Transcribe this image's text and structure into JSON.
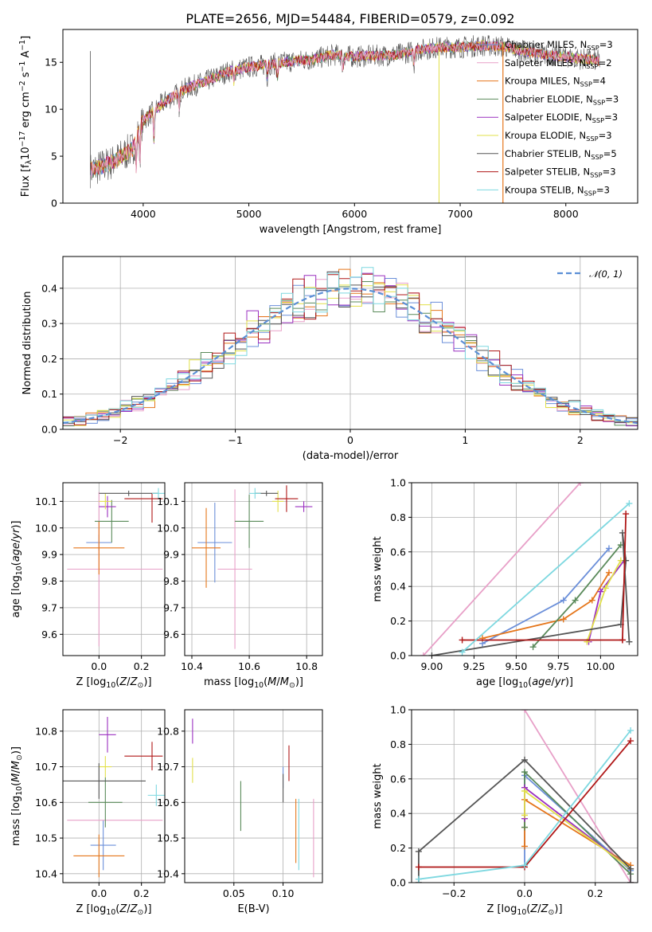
{
  "title": "PLATE=2656, MJD=54484, FIBERID=0579, z=0.092",
  "series_colors": [
    "#6b8fd9",
    "#e8a0c8",
    "#e5761b",
    "#5a8a5a",
    "#9b30c0",
    "#e2e04a",
    "#555555",
    "#b01818",
    "#7ed8e0"
  ],
  "legend": [
    "Chabrier MILES, N<sub>SSP</sub>=3",
    "Salpeter MILES, N<sub>SSP</sub>=2",
    "Kroupa MILES, N<sub>SSP</sub>=4",
    "Chabrier ELODIE, N<sub>SSP</sub>=3",
    "Salpeter ELODIE, N<sub>SSP</sub>=3",
    "Kroupa ELODIE, N<sub>SSP</sub>=3",
    "Chabrier STELIB, N<sub>SSP</sub>=5",
    "Salpeter STELIB, N<sub>SSP</sub>=3",
    "Kroupa STELIB, N<sub>SSP</sub>=3"
  ],
  "chart_data": [
    {
      "id": "spectrum",
      "type": "line",
      "xlabel": "wavelength [Angstrom, rest frame]",
      "ylabel": "Flux [f<sub>λ</sub>10<sup>−17</sup> erg cm<sup>−2</sup> s<sup>−1</sup> A<sup>−1</sup>]",
      "xlim": [
        3240,
        8680
      ],
      "ylim": [
        0,
        18.5
      ],
      "xticks": [
        4000,
        5000,
        6000,
        7000,
        8000
      ],
      "yticks": [
        0,
        5,
        10,
        15
      ],
      "x": [
        3500,
        3700,
        3900,
        4000,
        4200,
        4400,
        4600,
        4800,
        5000,
        5200,
        5400,
        5600,
        5800,
        6000,
        6200,
        6400,
        6600,
        6800,
        7000,
        7200,
        7400,
        7600,
        7800,
        8000,
        8200,
        8300
      ],
      "y": [
        3.5,
        4.3,
        5.8,
        8.8,
        10.8,
        12.2,
        13.0,
        14.0,
        14.5,
        14.8,
        15.1,
        15.3,
        15.8,
        15.6,
        15.7,
        15.8,
        16.3,
        16.6,
        16.6,
        16.8,
        16.7,
        16.2,
        15.8,
        15.6,
        15.3,
        15.2
      ]
    },
    {
      "id": "residuals",
      "type": "histogram",
      "xlabel": "(data-model)/error",
      "ylabel": "Normed distribution",
      "xlim": [
        -2.5,
        2.5
      ],
      "ylim": [
        0,
        0.49
      ],
      "xticks": [
        -2,
        -1,
        0,
        1,
        2
      ],
      "yticks": [
        0.0,
        0.1,
        0.2,
        0.3,
        0.4
      ],
      "legend": "𝒩(0, 1)",
      "bin_width": 0.1
    },
    {
      "id": "age_vs_Z",
      "type": "errorbar",
      "xlabel": "Z [log<sub>10</sub>(<i>Z</i>/<i>Z</i><sub>⊙</sub>)]",
      "ylabel": "age  [log<sub>10</sub>(<i>age</i>/<i>yr</i>)]",
      "xlim": [
        -0.17,
        0.31
      ],
      "ylim": [
        9.52,
        10.17
      ],
      "xticks": [
        0.0,
        0.2
      ],
      "yticks": [
        9.6,
        9.7,
        9.8,
        9.9,
        10.0,
        10.1
      ],
      "points": [
        {
          "series": 0,
          "x": 0.0,
          "y": 9.945,
          "xerr": [
            0.06,
            0.06
          ],
          "yerr": [
            0.03,
            0.03
          ]
        },
        {
          "series": 1,
          "x": 0.0,
          "y": 9.845,
          "xerr": [
            0.15,
            0.3
          ],
          "yerr": [
            0.29,
            0.29
          ]
        },
        {
          "series": 2,
          "x": 0.0,
          "y": 9.925,
          "xerr": [
            0.12,
            0.12
          ],
          "yerr": [
            0.1,
            0.1
          ]
        },
        {
          "series": 3,
          "x": 0.06,
          "y": 10.025,
          "xerr": [
            0.08,
            0.08
          ],
          "yerr": [
            0.08,
            0.08
          ]
        },
        {
          "series": 4,
          "x": 0.04,
          "y": 10.08,
          "xerr": [
            0.04,
            0.04
          ],
          "yerr": [
            0.04,
            0.04
          ]
        },
        {
          "series": 5,
          "x": 0.03,
          "y": 10.1,
          "xerr": [
            0.03,
            0.03
          ],
          "yerr": [
            0.03,
            0.03
          ]
        },
        {
          "series": 6,
          "x": 0.14,
          "y": 10.13,
          "xerr": [
            0.14,
            0.14
          ],
          "yerr": [
            0.01,
            0.01
          ]
        },
        {
          "series": 7,
          "x": 0.25,
          "y": 10.11,
          "xerr": [
            0.13,
            0.05
          ],
          "yerr": [
            0.09,
            0.02
          ]
        },
        {
          "series": 8,
          "x": 0.28,
          "y": 10.13,
          "xerr": [
            0.03,
            0.03
          ],
          "yerr": [
            0.02,
            0.02
          ]
        }
      ]
    },
    {
      "id": "age_vs_mass",
      "type": "errorbar",
      "xlabel": "mass [log<sub>10</sub>(<i>M</i>/<i>M</i><sub>⊙</sub>)]",
      "ylabel": "",
      "xlim": [
        10.375,
        10.855
      ],
      "ylim": [
        9.52,
        10.17
      ],
      "xticks": [
        10.4,
        10.6,
        10.8
      ],
      "yticks": [
        9.6,
        9.7,
        9.8,
        9.9,
        10.0,
        10.1
      ],
      "points": [
        {
          "series": 0,
          "x": 10.48,
          "y": 9.945,
          "xerr": [
            0.06,
            0.06
          ],
          "yerr": [
            0.15,
            0.15
          ]
        },
        {
          "series": 1,
          "x": 10.55,
          "y": 9.845,
          "xerr": [
            0.06,
            0.06
          ],
          "yerr": [
            0.3,
            0.3
          ]
        },
        {
          "series": 2,
          "x": 10.45,
          "y": 9.925,
          "xerr": [
            0.05,
            0.05
          ],
          "yerr": [
            0.15,
            0.15
          ]
        },
        {
          "series": 3,
          "x": 10.6,
          "y": 10.025,
          "xerr": [
            0.05,
            0.05
          ],
          "yerr": [
            0.1,
            0.1
          ]
        },
        {
          "series": 4,
          "x": 10.79,
          "y": 10.08,
          "xerr": [
            0.03,
            0.03
          ],
          "yerr": [
            0.02,
            0.02
          ]
        },
        {
          "series": 5,
          "x": 10.7,
          "y": 10.1,
          "xerr": [
            0.02,
            0.02
          ],
          "yerr": [
            0.04,
            0.04
          ]
        },
        {
          "series": 6,
          "x": 10.66,
          "y": 10.13,
          "xerr": [
            0.04,
            0.04
          ],
          "yerr": [
            0.01,
            0.01
          ]
        },
        {
          "series": 7,
          "x": 10.73,
          "y": 10.11,
          "xerr": [
            0.04,
            0.04
          ],
          "yerr": [
            0.05,
            0.05
          ]
        },
        {
          "series": 8,
          "x": 10.62,
          "y": 10.13,
          "xerr": [
            0.02,
            0.02
          ],
          "yerr": [
            0.02,
            0.02
          ]
        }
      ]
    },
    {
      "id": "mass_weight_vs_age",
      "type": "line",
      "xlabel": "age  [log<sub>10</sub>(<i>age</i>/<i>yr</i>)]",
      "ylabel": "mass weight",
      "xlim": [
        8.88,
        10.22
      ],
      "ylim": [
        0,
        1
      ],
      "xticks": [
        9.0,
        9.25,
        9.5,
        9.75,
        10.0
      ],
      "yticks": [
        0.0,
        0.2,
        0.4,
        0.6,
        0.8,
        1.0
      ],
      "series": [
        {
          "series": 0,
          "x": [
            9.3,
            9.78,
            10.05
          ],
          "y": [
            0.07,
            0.32,
            0.62
          ]
        },
        {
          "series": 1,
          "x": [
            8.95,
            9.88
          ],
          "y": [
            0.0,
            1.0
          ]
        },
        {
          "series": 2,
          "x": [
            9.3,
            9.78,
            9.95,
            10.05
          ],
          "y": [
            0.1,
            0.21,
            0.32,
            0.48
          ]
        },
        {
          "series": 3,
          "x": [
            9.6,
            9.85,
            10.12
          ],
          "y": [
            0.05,
            0.32,
            0.64
          ]
        },
        {
          "series": 4,
          "x": [
            9.93,
            10.0,
            10.14
          ],
          "y": [
            0.08,
            0.37,
            0.55
          ]
        },
        {
          "series": 5,
          "x": [
            9.92,
            10.03,
            10.12
          ],
          "y": [
            0.08,
            0.39,
            0.55
          ]
        },
        {
          "series": 6,
          "x": [
            9.0,
            10.12,
            10.15,
            10.13,
            10.17
          ],
          "y": [
            0.0,
            0.18,
            0.55,
            0.71,
            0.08
          ]
        },
        {
          "series": 7,
          "x": [
            9.18,
            10.13,
            10.15,
            10.13
          ],
          "y": [
            0.09,
            0.09,
            0.82,
            0.09
          ]
        },
        {
          "series": 8,
          "x": [
            9.18,
            10.17
          ],
          "y": [
            0.02,
            0.88
          ]
        }
      ]
    },
    {
      "id": "mass_vs_Z",
      "type": "errorbar",
      "xlabel": "Z [log<sub>10</sub>(<i>Z</i>/<i>Z</i><sub>⊙</sub>)]",
      "ylabel": "mass [log<sub>10</sub>(<i>M</i>/<i>M</i><sub>⊙</sub>)]",
      "xlim": [
        -0.17,
        0.31
      ],
      "ylim": [
        10.375,
        10.86
      ],
      "xticks": [
        0.0,
        0.2
      ],
      "yticks": [
        10.4,
        10.5,
        10.6,
        10.7,
        10.8
      ],
      "points": [
        {
          "series": 0,
          "x": 0.02,
          "y": 10.48,
          "xerr": [
            0.06,
            0.06
          ],
          "yerr": [
            0.07,
            0.07
          ]
        },
        {
          "series": 1,
          "x": 0.0,
          "y": 10.55,
          "xerr": [
            0.15,
            0.3
          ],
          "yerr": [
            0.0,
            0.0
          ]
        },
        {
          "series": 2,
          "x": 0.0,
          "y": 10.45,
          "xerr": [
            0.12,
            0.12
          ],
          "yerr": [
            0.06,
            0.06
          ]
        },
        {
          "series": 3,
          "x": 0.03,
          "y": 10.6,
          "xerr": [
            0.08,
            0.08
          ],
          "yerr": [
            0.07,
            0.07
          ]
        },
        {
          "series": 4,
          "x": 0.04,
          "y": 10.79,
          "xerr": [
            0.04,
            0.04
          ],
          "yerr": [
            0.05,
            0.05
          ]
        },
        {
          "series": 5,
          "x": 0.03,
          "y": 10.7,
          "xerr": [
            0.03,
            0.03
          ],
          "yerr": [
            0.03,
            0.03
          ]
        },
        {
          "series": 6,
          "x": 0.0,
          "y": 10.66,
          "xerr": [
            0.22,
            0.22
          ],
          "yerr": [
            0.05,
            0.05
          ]
        },
        {
          "series": 7,
          "x": 0.25,
          "y": 10.73,
          "xerr": [
            0.13,
            0.05
          ],
          "yerr": [
            0.04,
            0.04
          ]
        },
        {
          "series": 8,
          "x": 0.27,
          "y": 10.62,
          "xerr": [
            0.04,
            0.04
          ],
          "yerr": [
            0.03,
            0.03
          ]
        }
      ]
    },
    {
      "id": "mass_vs_ebv",
      "type": "errorbar",
      "xlabel": "E(B-V)",
      "ylabel": "",
      "xlim": [
        0.0,
        0.14
      ],
      "ylim": [
        10.375,
        10.86
      ],
      "xticks": [
        0.05,
        0.1
      ],
      "yticks": [
        10.4,
        10.5,
        10.6,
        10.7,
        10.8
      ],
      "points": [
        {
          "series": 0,
          "x": 0.1,
          "y": 10.67,
          "xerr": [
            0.0,
            0.0
          ],
          "yerr": [
            0.03,
            0.03
          ]
        },
        {
          "series": 1,
          "x": 0.131,
          "y": 10.5,
          "xerr": [
            0.0,
            0.0
          ],
          "yerr": [
            0.11,
            0.11
          ]
        },
        {
          "series": 2,
          "x": 0.113,
          "y": 10.52,
          "xerr": [
            0.0,
            0.0
          ],
          "yerr": [
            0.09,
            0.09
          ]
        },
        {
          "series": 3,
          "x": 0.057,
          "y": 10.59,
          "xerr": [
            0.0,
            0.0
          ],
          "yerr": [
            0.07,
            0.07
          ]
        },
        {
          "series": 4,
          "x": 0.008,
          "y": 10.8,
          "xerr": [
            0.0,
            0.0
          ],
          "yerr": [
            0.035,
            0.035
          ]
        },
        {
          "series": 5,
          "x": 0.008,
          "y": 10.69,
          "xerr": [
            0.0,
            0.0
          ],
          "yerr": [
            0.035,
            0.035
          ]
        },
        {
          "series": 6,
          "x": 0.1,
          "y": 10.64,
          "xerr": [
            0.0,
            0.0
          ],
          "yerr": [
            0.04,
            0.04
          ]
        },
        {
          "series": 7,
          "x": 0.106,
          "y": 10.71,
          "xerr": [
            0.0,
            0.0
          ],
          "yerr": [
            0.05,
            0.05
          ]
        },
        {
          "series": 8,
          "x": 0.116,
          "y": 10.51,
          "xerr": [
            0.0,
            0.0
          ],
          "yerr": [
            0.1,
            0.1
          ]
        }
      ]
    },
    {
      "id": "mass_weight_vs_Z",
      "type": "line",
      "xlabel": "Z [log<sub>10</sub>(<i>Z</i>/<i>Z</i><sub>⊙</sub>)]",
      "ylabel": "mass weight",
      "xlim": [
        -0.32,
        0.32
      ],
      "ylim": [
        0,
        1
      ],
      "xticks": [
        -0.2,
        0.0,
        0.2
      ],
      "yticks": [
        0.0,
        0.2,
        0.4,
        0.6,
        0.8,
        1.0
      ],
      "series": [
        {
          "series": 0,
          "x": [
            0.0,
            0.0,
            0.3
          ],
          "y": [
            0.1,
            0.62,
            0.07
          ]
        },
        {
          "series": 1,
          "x": [
            0.0,
            0.3
          ],
          "y": [
            1.0,
            0.0
          ]
        },
        {
          "series": 2,
          "x": [
            0.0,
            0.0,
            0.0,
            0.3
          ],
          "y": [
            0.21,
            0.32,
            0.48,
            0.1
          ]
        },
        {
          "series": 3,
          "x": [
            0.0,
            0.0,
            0.3
          ],
          "y": [
            0.32,
            0.64,
            0.05
          ]
        },
        {
          "series": 4,
          "x": [
            0.0,
            0.0,
            0.3
          ],
          "y": [
            0.37,
            0.55,
            0.08
          ]
        },
        {
          "series": 5,
          "x": [
            0.0,
            0.0,
            0.3
          ],
          "y": [
            0.39,
            0.53,
            0.08
          ]
        },
        {
          "series": 6,
          "x": [
            -0.3,
            -0.3,
            0.0,
            0.3,
            0.3
          ],
          "y": [
            0.0,
            0.18,
            0.71,
            0.08,
            0.0
          ]
        },
        {
          "series": 7,
          "x": [
            -0.3,
            0.0,
            0.3
          ],
          "y": [
            0.09,
            0.09,
            0.82
          ]
        },
        {
          "series": 8,
          "x": [
            -0.3,
            0.0,
            0.3
          ],
          "y": [
            0.02,
            0.1,
            0.88
          ]
        }
      ]
    }
  ]
}
